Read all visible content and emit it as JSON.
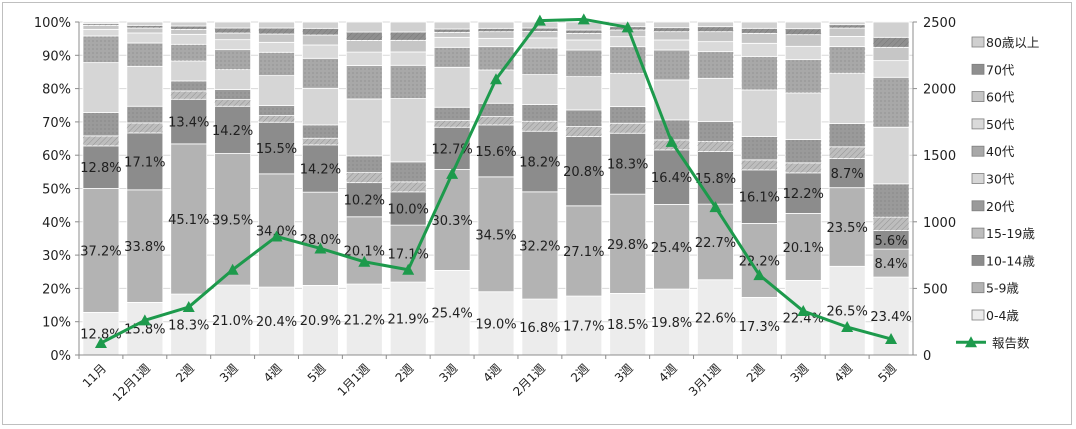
{
  "chart_data": {
    "type": "bar",
    "stacked": true,
    "categories": [
      "11月",
      "12月1週",
      "2週",
      "3週",
      "4週",
      "5週",
      "1月1週",
      "2週",
      "3週",
      "4週",
      "2月1週",
      "2週",
      "3週",
      "4週",
      "3月1週",
      "2週",
      "3週",
      "4週",
      "5週"
    ],
    "series": [
      {
        "name": "0-4歳",
        "color": "#ececec",
        "values": [
          12.8,
          15.8,
          18.3,
          21.0,
          20.4,
          20.9,
          21.2,
          21.9,
          25.4,
          19.0,
          16.8,
          17.7,
          18.5,
          19.8,
          22.6,
          17.3,
          22.4,
          26.5,
          23.4
        ]
      },
      {
        "name": "5-9歳",
        "color": "#b3b3b3",
        "values": [
          37.2,
          33.8,
          45.1,
          39.5,
          34.0,
          28.0,
          20.1,
          17.1,
          30.3,
          34.5,
          32.2,
          27.1,
          29.8,
          25.4,
          22.7,
          22.2,
          20.1,
          23.5,
          8.4
        ]
      },
      {
        "name": "10-14歳",
        "color": "#8c8c8c",
        "values": [
          12.8,
          17.1,
          13.4,
          14.2,
          15.5,
          14.2,
          10.2,
          10.0,
          12.7,
          15.6,
          18.2,
          20.8,
          18.3,
          16.4,
          15.8,
          16.1,
          12.2,
          8.7,
          5.6
        ]
      },
      {
        "name": "15-19歳",
        "color": "#bdbdbd",
        "values": [
          3.0,
          3.0,
          2.5,
          2.0,
          2.0,
          2.0,
          3.0,
          3.0,
          2.0,
          2.5,
          3.0,
          3.0,
          3.0,
          3.0,
          3.0,
          3.0,
          3.0,
          3.5,
          4.0
        ]
      },
      {
        "name": "20代",
        "color": "#9a9a9a",
        "values": [
          7.0,
          5.0,
          3.0,
          3.0,
          3.0,
          4.0,
          5.0,
          6.0,
          4.0,
          4.0,
          5.0,
          5.0,
          5.0,
          6.0,
          6.0,
          7.0,
          7.0,
          7.0,
          10.0
        ]
      },
      {
        "name": "30代",
        "color": "#d6d6d6",
        "values": [
          15.0,
          12.0,
          6.0,
          6.0,
          9.0,
          11.0,
          17.0,
          19.0,
          12.0,
          10.0,
          9.0,
          10.0,
          10.0,
          12.0,
          13.0,
          14.0,
          14.0,
          15.0,
          17.0
        ]
      },
      {
        "name": "40代",
        "color": "#a8a8a8",
        "values": [
          8.0,
          7.0,
          5.0,
          6.0,
          7.0,
          9.0,
          10.0,
          10.0,
          6.0,
          7.0,
          8.0,
          8.0,
          8.0,
          9.0,
          8.0,
          10.0,
          10.0,
          8.0,
          15.0
        ]
      },
      {
        "name": "50代",
        "color": "#dadada",
        "values": [
          2.0,
          3.0,
          3.0,
          3.0,
          3.0,
          4.0,
          4.0,
          4.0,
          3.0,
          2.5,
          3.0,
          3.0,
          3.0,
          3.0,
          3.0,
          4.0,
          4.0,
          3.0,
          5.0
        ]
      },
      {
        "name": "60代",
        "color": "#c6c6c6",
        "values": [
          1.2,
          1.5,
          1.5,
          2.0,
          2.5,
          3.0,
          3.5,
          3.5,
          1.5,
          2.0,
          2.0,
          2.0,
          2.0,
          2.5,
          3.0,
          3.0,
          3.5,
          2.5,
          4.0
        ]
      },
      {
        "name": "70代",
        "color": "#8f8f8f",
        "values": [
          0.5,
          0.8,
          1.0,
          1.5,
          1.8,
          2.0,
          2.5,
          2.5,
          1.0,
          1.0,
          1.0,
          1.0,
          1.0,
          1.2,
          1.5,
          1.5,
          1.8,
          1.0,
          3.0
        ]
      },
      {
        "name": "80歳以上",
        "color": "#d0d0d0",
        "values": [
          0.5,
          1.0,
          1.2,
          1.8,
          1.8,
          1.9,
          3.0,
          3.0,
          2.1,
          1.9,
          1.8,
          2.4,
          1.4,
          1.7,
          1.4,
          1.9,
          2.0,
          0.8,
          4.6
        ]
      }
    ],
    "line_series": {
      "name": "報告数",
      "color": "#1d9a4c",
      "values": [
        90,
        260,
        360,
        640,
        890,
        800,
        700,
        640,
        1360,
        2070,
        2510,
        2520,
        2460,
        1600,
        1110,
        600,
        330,
        210,
        120
      ]
    },
    "data_labels": [
      [
        "12.8%",
        "37.2%",
        "12.8%"
      ],
      [
        "15.8%",
        "33.8%",
        "17.1%"
      ],
      [
        "18.3%",
        "45.1%",
        "13.4%"
      ],
      [
        "21.0%",
        "39.5%",
        "14.2%"
      ],
      [
        "20.4%",
        "34.0%",
        "15.5%"
      ],
      [
        "20.9%",
        "28.0%",
        "14.2%"
      ],
      [
        "21.2%",
        "20.1%",
        "10.2%"
      ],
      [
        "21.9%",
        "17.1%",
        "10.0%"
      ],
      [
        "25.4%",
        "30.3%",
        "12.7%"
      ],
      [
        "19.0%",
        "34.5%",
        "15.6%"
      ],
      [
        "16.8%",
        "32.2%",
        "18.2%"
      ],
      [
        "17.7%",
        "27.1%",
        "20.8%"
      ],
      [
        "18.5%",
        "29.8%",
        "18.3%"
      ],
      [
        "19.8%",
        "25.4%",
        "16.4%"
      ],
      [
        "22.6%",
        "22.7%",
        "15.8%"
      ],
      [
        "17.3%",
        "22.2%",
        "16.1%"
      ],
      [
        "22.4%",
        "20.1%",
        "12.2%"
      ],
      [
        "26.5%",
        "23.5%",
        "8.7%"
      ],
      [
        "23.4%",
        "8.4%",
        "5.6%"
      ]
    ],
    "left_ticks": [
      "0%",
      "10%",
      "20%",
      "30%",
      "40%",
      "50%",
      "60%",
      "70%",
      "80%",
      "90%",
      "100%"
    ],
    "right_ticks": [
      "0",
      "500",
      "1000",
      "1500",
      "2000",
      "2500"
    ],
    "ylim_left": [
      0,
      100
    ],
    "ylim_right": [
      0,
      2500
    ],
    "legend_position": "right",
    "legend_order": [
      "80歳以上",
      "70代",
      "60代",
      "50代",
      "40代",
      "30代",
      "20代",
      "15-19歳",
      "10-14歳",
      "5-9歳",
      "0-4歳",
      "報告数"
    ]
  }
}
